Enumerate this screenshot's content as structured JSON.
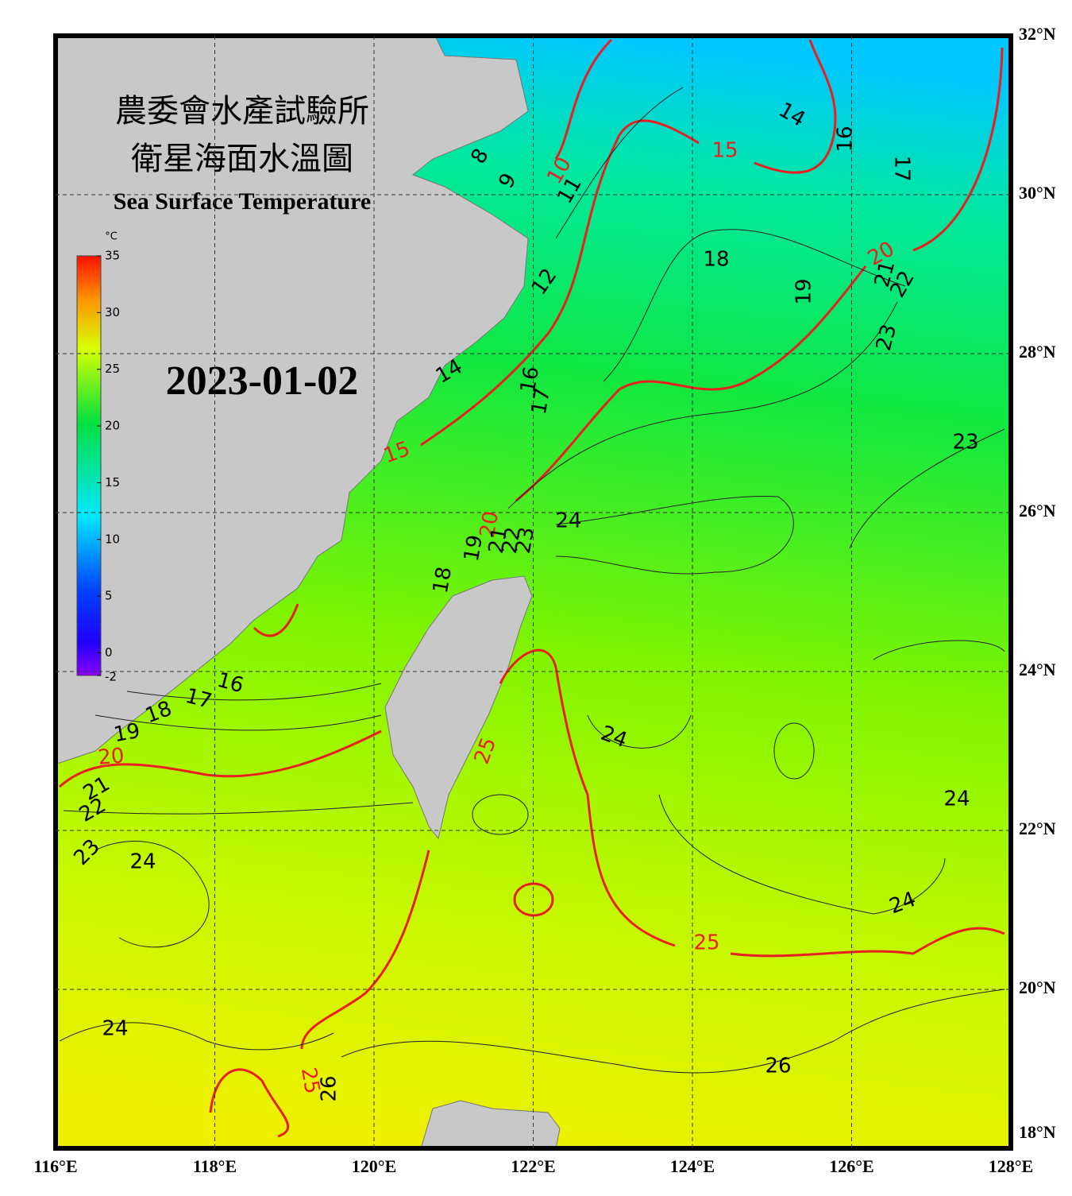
{
  "header": {
    "title_zh_1": "農委會水產試驗所",
    "title_zh_2": "衛星海面水溫圖",
    "title_en": "Sea Surface Temperature",
    "date": "2023-01-02"
  },
  "colorbar": {
    "unit": "°C",
    "range": [
      -2,
      35
    ],
    "ticks": [
      35,
      30,
      25,
      20,
      15,
      10,
      5,
      0,
      -2
    ]
  },
  "map": {
    "lon_range": [
      116,
      128
    ],
    "lat_range": [
      18,
      32
    ],
    "grid": true,
    "lon_ticks": [
      {
        "value": 116,
        "label": "116°E"
      },
      {
        "value": 118,
        "label": "118°E"
      },
      {
        "value": 120,
        "label": "120°E"
      },
      {
        "value": 122,
        "label": "122°E"
      },
      {
        "value": 124,
        "label": "124°E"
      },
      {
        "value": 126,
        "label": "126°E"
      },
      {
        "value": 128,
        "label": "128°E"
      }
    ],
    "lat_ticks": [
      {
        "value": 32,
        "label": "32°N"
      },
      {
        "value": 30,
        "label": "30°N"
      },
      {
        "value": 28,
        "label": "28°N"
      },
      {
        "value": 26,
        "label": "26°N"
      },
      {
        "value": 24,
        "label": "24°N"
      },
      {
        "value": 22,
        "label": "22°N"
      },
      {
        "value": 20,
        "label": "20°N"
      },
      {
        "value": 18,
        "label": "18°N"
      }
    ],
    "contour_labels": [
      "8",
      "9",
      "10",
      "11",
      "12",
      "14",
      "15",
      "16",
      "17",
      "18",
      "19",
      "20",
      "21",
      "22",
      "23",
      "14",
      "16",
      "17",
      "15",
      "23",
      "24",
      "20",
      "19",
      "21",
      "22",
      "23",
      "18",
      "16",
      "17",
      "18",
      "19",
      "20",
      "21",
      "22",
      "23",
      "24",
      "24",
      "24",
      "25",
      "24",
      "25",
      "24",
      "26",
      "25",
      "26"
    ]
  }
}
